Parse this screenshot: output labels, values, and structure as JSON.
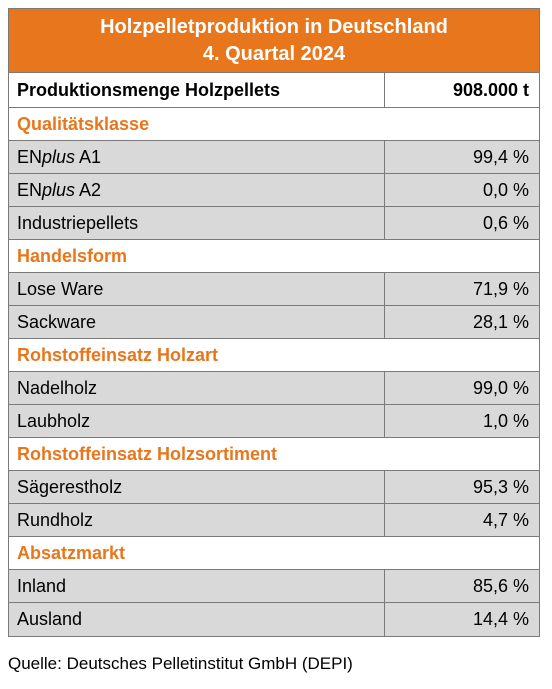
{
  "title": {
    "line1": "Holzpelletproduktion in Deutschland",
    "line2": "4. Quartal 2024"
  },
  "main_row": {
    "label": "Produktionsmenge Holzpellets",
    "value": "908.000 t"
  },
  "sections": [
    {
      "heading": "Qualitätsklasse",
      "rows": [
        {
          "label_prefix": "EN",
          "label_italic": "plus",
          "label_suffix": " A1",
          "value": "99,4 %"
        },
        {
          "label_prefix": "EN",
          "label_italic": "plus",
          "label_suffix": " A2",
          "value": "0,0 %"
        },
        {
          "label_prefix": "Industriepellets",
          "label_italic": "",
          "label_suffix": "",
          "value": "0,6 %"
        }
      ]
    },
    {
      "heading": "Handelsform",
      "rows": [
        {
          "label_prefix": "Lose Ware",
          "label_italic": "",
          "label_suffix": "",
          "value": "71,9 %"
        },
        {
          "label_prefix": "Sackware",
          "label_italic": "",
          "label_suffix": "",
          "value": "28,1 %"
        }
      ]
    },
    {
      "heading": "Rohstoffeinsatz Holzart",
      "rows": [
        {
          "label_prefix": "Nadelholz",
          "label_italic": "",
          "label_suffix": "",
          "value": "99,0 %"
        },
        {
          "label_prefix": "Laubholz",
          "label_italic": "",
          "label_suffix": "",
          "value": "1,0 %"
        }
      ]
    },
    {
      "heading": "Rohstoffeinsatz Holzsortiment",
      "rows": [
        {
          "label_prefix": "Sägerestholz",
          "label_italic": "",
          "label_suffix": "",
          "value": "95,3 %"
        },
        {
          "label_prefix": "Rundholz",
          "label_italic": "",
          "label_suffix": "",
          "value": "4,7 %"
        }
      ]
    },
    {
      "heading": "Absatzmarkt",
      "rows": [
        {
          "label_prefix": "Inland",
          "label_italic": "",
          "label_suffix": "",
          "value": "85,6 %"
        },
        {
          "label_prefix": "Ausland",
          "label_italic": "",
          "label_suffix": "",
          "value": "14,4 %"
        }
      ]
    }
  ],
  "footer": "Quelle: Deutsches Pelletinstitut GmbH (DEPI)",
  "colors": {
    "accent": "#e8761c",
    "row_fill": "#d9d9d9",
    "border": "#7a7a7a"
  }
}
